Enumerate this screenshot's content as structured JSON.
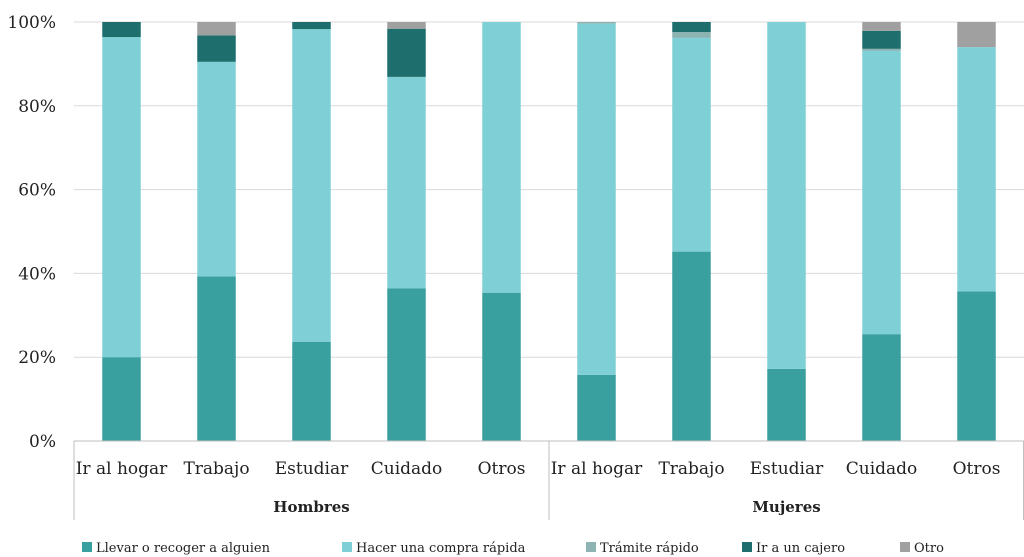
{
  "chart_data": {
    "type": "bar",
    "stacked": true,
    "percent": true,
    "title": "",
    "xlabel": "",
    "ylabel": "",
    "ylim": [
      0,
      100
    ],
    "y_ticks": [
      "0%",
      "20%",
      "40%",
      "60%",
      "80%",
      "100%"
    ],
    "grid": "horizontal",
    "legend_position": "bottom",
    "groups": [
      {
        "label": "Hombres",
        "categories": [
          "Ir al hogar",
          "Trabajo",
          "Estudiar",
          "Cuidado",
          "Otros"
        ]
      },
      {
        "label": "Mujeres",
        "categories": [
          "Ir al hogar",
          "Trabajo",
          "Estudiar",
          "Cuidado",
          "Otros"
        ]
      }
    ],
    "series": [
      {
        "name": "Llevar o recoger a alguien",
        "color": "#3a9f9f",
        "values": [
          20,
          39.3,
          23.7,
          36.4,
          35.4,
          15.8,
          45.2,
          17.2,
          25.5,
          35.7
        ]
      },
      {
        "name": "Hacer una compra rápida",
        "color": "#7fd0d6",
        "values": [
          76.4,
          51.2,
          74.6,
          50.5,
          64.6,
          83.8,
          51.0,
          82.8,
          67.6,
          58.3
        ]
      },
      {
        "name": "Trámite rápido",
        "color": "#8db3b3",
        "values": [
          0,
          0,
          0,
          0,
          0,
          0.4,
          1.4,
          0,
          0.5,
          0
        ]
      },
      {
        "name": "Ir a un cajero",
        "color": "#1f6e6e",
        "values": [
          3.6,
          6.3,
          1.7,
          11.5,
          0,
          0,
          2.4,
          0,
          4.3,
          0
        ]
      },
      {
        "name": "Otro",
        "color": "#a0a0a0",
        "values": [
          0,
          3.2,
          0,
          1.6,
          0,
          0,
          0,
          0,
          2.1,
          6.0
        ]
      }
    ]
  }
}
